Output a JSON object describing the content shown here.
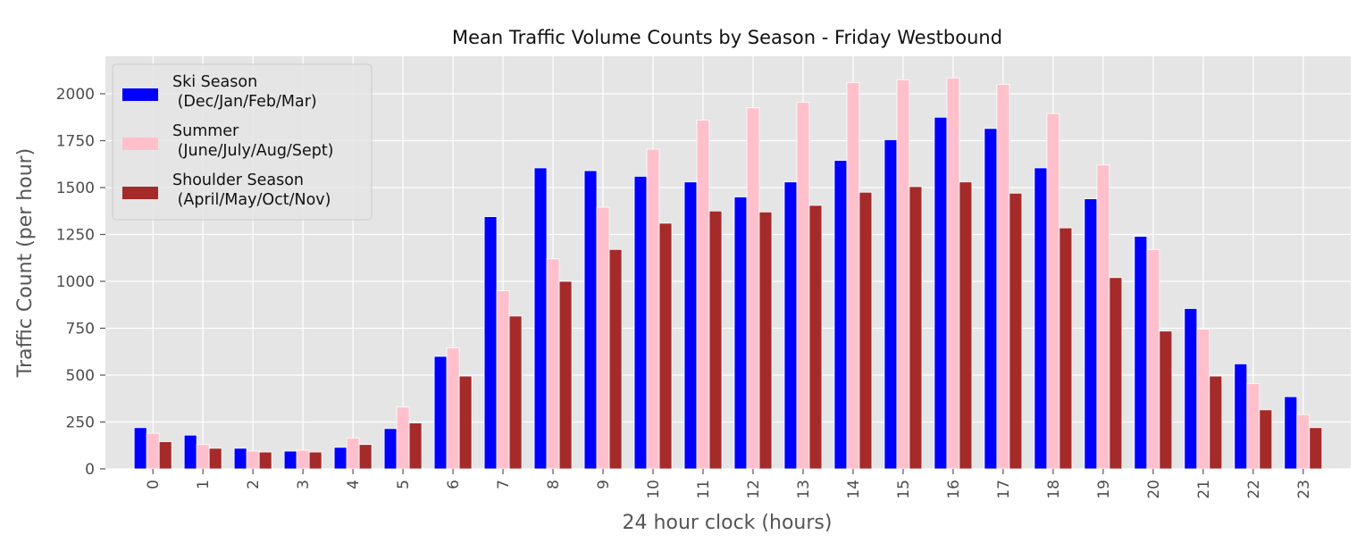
{
  "chart_data": {
    "type": "bar",
    "title": "Mean Traffic Volume Counts by Season - Friday Westbound",
    "xlabel": "24 hour clock (hours)",
    "ylabel": "Traffic Count (per hour)",
    "categories": [
      "0",
      "1",
      "2",
      "3",
      "4",
      "5",
      "6",
      "7",
      "8",
      "9",
      "10",
      "11",
      "12",
      "13",
      "14",
      "15",
      "16",
      "17",
      "18",
      "19",
      "20",
      "21",
      "22",
      "23"
    ],
    "ylim": [
      0,
      2200
    ],
    "yticks": [
      0,
      250,
      500,
      750,
      1000,
      1250,
      1500,
      1750,
      2000
    ],
    "grid": true,
    "legend_position": "top-left",
    "background_color": "#e5e5e5",
    "series": [
      {
        "name": "Ski Season\n (Dec/Jan/Feb/Mar)",
        "color": "#0000ff",
        "values": [
          220,
          180,
          110,
          95,
          115,
          215,
          600,
          1345,
          1605,
          1590,
          1560,
          1530,
          1450,
          1530,
          1645,
          1755,
          1875,
          1815,
          1605,
          1440,
          1240,
          855,
          560,
          385
        ]
      },
      {
        "name": "Summer\n (June/July/Aug/Sept)",
        "color": "#ffc0cb",
        "values": [
          190,
          130,
          95,
          100,
          165,
          330,
          645,
          950,
          1120,
          1395,
          1705,
          1860,
          1925,
          1955,
          2060,
          2075,
          2085,
          2050,
          1895,
          1620,
          1170,
          745,
          455,
          290
        ]
      },
      {
        "name": "Shoulder Season\n (April/May/Oct/Nov)",
        "color": "#a52a2a",
        "values": [
          145,
          110,
          90,
          90,
          130,
          245,
          495,
          815,
          1000,
          1170,
          1310,
          1375,
          1370,
          1405,
          1475,
          1505,
          1530,
          1470,
          1285,
          1020,
          735,
          495,
          315,
          220
        ]
      }
    ]
  }
}
